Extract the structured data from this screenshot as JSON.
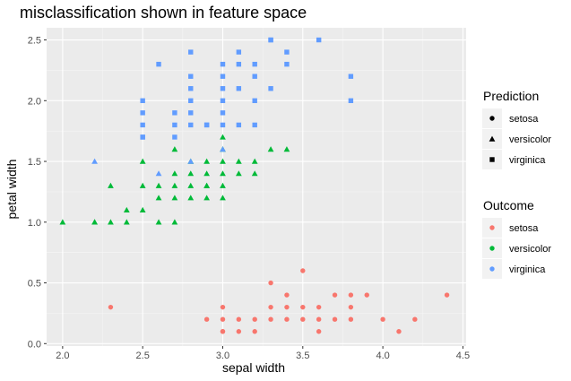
{
  "chart_data": {
    "type": "scatter",
    "title": "misclassification shown in feature space",
    "xlabel": "sepal width",
    "ylabel": "petal width",
    "xlim": [
      1.9,
      4.52
    ],
    "ylim": [
      -0.02,
      2.6
    ],
    "xticks": [
      "2.0",
      "2.5",
      "3.0",
      "3.5",
      "4.0",
      "4.5"
    ],
    "yticks": [
      "0.0",
      "0.5",
      "1.0",
      "1.5",
      "2.0",
      "2.5"
    ],
    "grid": true,
    "legend_placement": "right",
    "legends": {
      "prediction": {
        "title": "Prediction",
        "items": [
          {
            "label": "setosa",
            "shape": "circle"
          },
          {
            "label": "versicolor",
            "shape": "triangle"
          },
          {
            "label": "virginica",
            "shape": "square"
          }
        ]
      },
      "outcome": {
        "title": "Outcome",
        "items": [
          {
            "label": "setosa",
            "color": "#F8766D"
          },
          {
            "label": "versicolor",
            "color": "#00BA38"
          },
          {
            "label": "virginica",
            "color": "#619CFF"
          }
        ]
      }
    },
    "series": [
      {
        "prediction": "setosa",
        "outcome": "setosa",
        "points": [
          [
            2.3,
            0.3
          ],
          [
            3.0,
            0.3
          ],
          [
            3.0,
            0.1
          ],
          [
            2.9,
            0.2
          ],
          [
            3.0,
            0.2
          ],
          [
            3.1,
            0.2
          ],
          [
            3.2,
            0.2
          ],
          [
            3.3,
            0.2
          ],
          [
            3.4,
            0.2
          ],
          [
            3.5,
            0.2
          ],
          [
            3.6,
            0.2
          ],
          [
            3.7,
            0.2
          ],
          [
            3.8,
            0.2
          ],
          [
            4.0,
            0.2
          ],
          [
            4.2,
            0.2
          ],
          [
            3.1,
            0.1
          ],
          [
            3.3,
            0.3
          ],
          [
            3.4,
            0.3
          ],
          [
            3.5,
            0.3
          ],
          [
            3.6,
            0.3
          ],
          [
            3.8,
            0.3
          ],
          [
            3.7,
            0.4
          ],
          [
            3.8,
            0.4
          ],
          [
            3.9,
            0.4
          ],
          [
            4.4,
            0.4
          ],
          [
            3.3,
            0.5
          ],
          [
            3.4,
            0.4
          ],
          [
            3.5,
            0.6
          ],
          [
            3.6,
            0.1
          ],
          [
            4.1,
            0.1
          ],
          [
            3.0,
            0.1
          ],
          [
            3.2,
            0.1
          ]
        ]
      },
      {
        "prediction": "versicolor",
        "outcome": "versicolor",
        "points": [
          [
            2.0,
            1.0
          ],
          [
            2.2,
            1.0
          ],
          [
            2.3,
            1.0
          ],
          [
            2.4,
            1.0
          ],
          [
            2.6,
            1.0
          ],
          [
            2.7,
            1.0
          ],
          [
            2.4,
            1.1
          ],
          [
            2.5,
            1.1
          ],
          [
            2.6,
            1.2
          ],
          [
            2.7,
            1.2
          ],
          [
            2.8,
            1.2
          ],
          [
            2.9,
            1.2
          ],
          [
            3.0,
            1.2
          ],
          [
            2.3,
            1.3
          ],
          [
            2.5,
            1.3
          ],
          [
            2.6,
            1.3
          ],
          [
            2.7,
            1.3
          ],
          [
            2.8,
            1.3
          ],
          [
            2.9,
            1.3
          ],
          [
            3.0,
            1.3
          ],
          [
            2.7,
            1.4
          ],
          [
            2.8,
            1.4
          ],
          [
            2.9,
            1.4
          ],
          [
            3.0,
            1.4
          ],
          [
            3.1,
            1.4
          ],
          [
            3.2,
            1.4
          ],
          [
            2.5,
            1.5
          ],
          [
            2.8,
            1.5
          ],
          [
            2.9,
            1.5
          ],
          [
            3.0,
            1.5
          ],
          [
            3.1,
            1.5
          ],
          [
            3.2,
            1.5
          ],
          [
            2.7,
            1.6
          ],
          [
            3.0,
            1.6
          ],
          [
            3.3,
            1.6
          ],
          [
            3.4,
            1.6
          ],
          [
            3.0,
            1.7
          ],
          [
            2.2,
            1.0
          ],
          [
            2.9,
            1.3
          ]
        ]
      },
      {
        "prediction": "versicolor",
        "outcome": "virginica",
        "points": [
          [
            2.2,
            1.5
          ],
          [
            2.6,
            1.4
          ],
          [
            2.8,
            1.5
          ],
          [
            3.0,
            1.6
          ]
        ]
      },
      {
        "prediction": "virginica",
        "outcome": "virginica",
        "points": [
          [
            2.5,
            1.7
          ],
          [
            2.5,
            1.8
          ],
          [
            2.5,
            1.9
          ],
          [
            2.5,
            2.0
          ],
          [
            2.6,
            2.3
          ],
          [
            2.7,
            1.8
          ],
          [
            2.7,
            1.9
          ],
          [
            2.8,
            1.8
          ],
          [
            2.8,
            1.9
          ],
          [
            2.8,
            2.0
          ],
          [
            2.8,
            2.1
          ],
          [
            2.8,
            2.2
          ],
          [
            2.8,
            2.4
          ],
          [
            2.9,
            1.8
          ],
          [
            3.0,
            1.8
          ],
          [
            3.0,
            2.0
          ],
          [
            3.0,
            2.1
          ],
          [
            3.0,
            2.2
          ],
          [
            3.0,
            2.3
          ],
          [
            3.1,
            1.8
          ],
          [
            3.1,
            2.1
          ],
          [
            3.1,
            2.3
          ],
          [
            3.2,
            1.8
          ],
          [
            3.2,
            2.0
          ],
          [
            3.2,
            2.3
          ],
          [
            3.3,
            2.1
          ],
          [
            3.3,
            2.5
          ],
          [
            3.4,
            2.3
          ],
          [
            3.4,
            2.4
          ],
          [
            3.6,
            2.5
          ],
          [
            3.8,
            2.0
          ],
          [
            3.8,
            2.2
          ],
          [
            2.9,
            1.8
          ],
          [
            2.7,
            1.7
          ],
          [
            3.0,
            1.9
          ],
          [
            3.1,
            2.4
          ],
          [
            3.3,
            2.5
          ],
          [
            2.5,
            1.7
          ],
          [
            3.2,
            2.2
          ]
        ]
      }
    ]
  }
}
